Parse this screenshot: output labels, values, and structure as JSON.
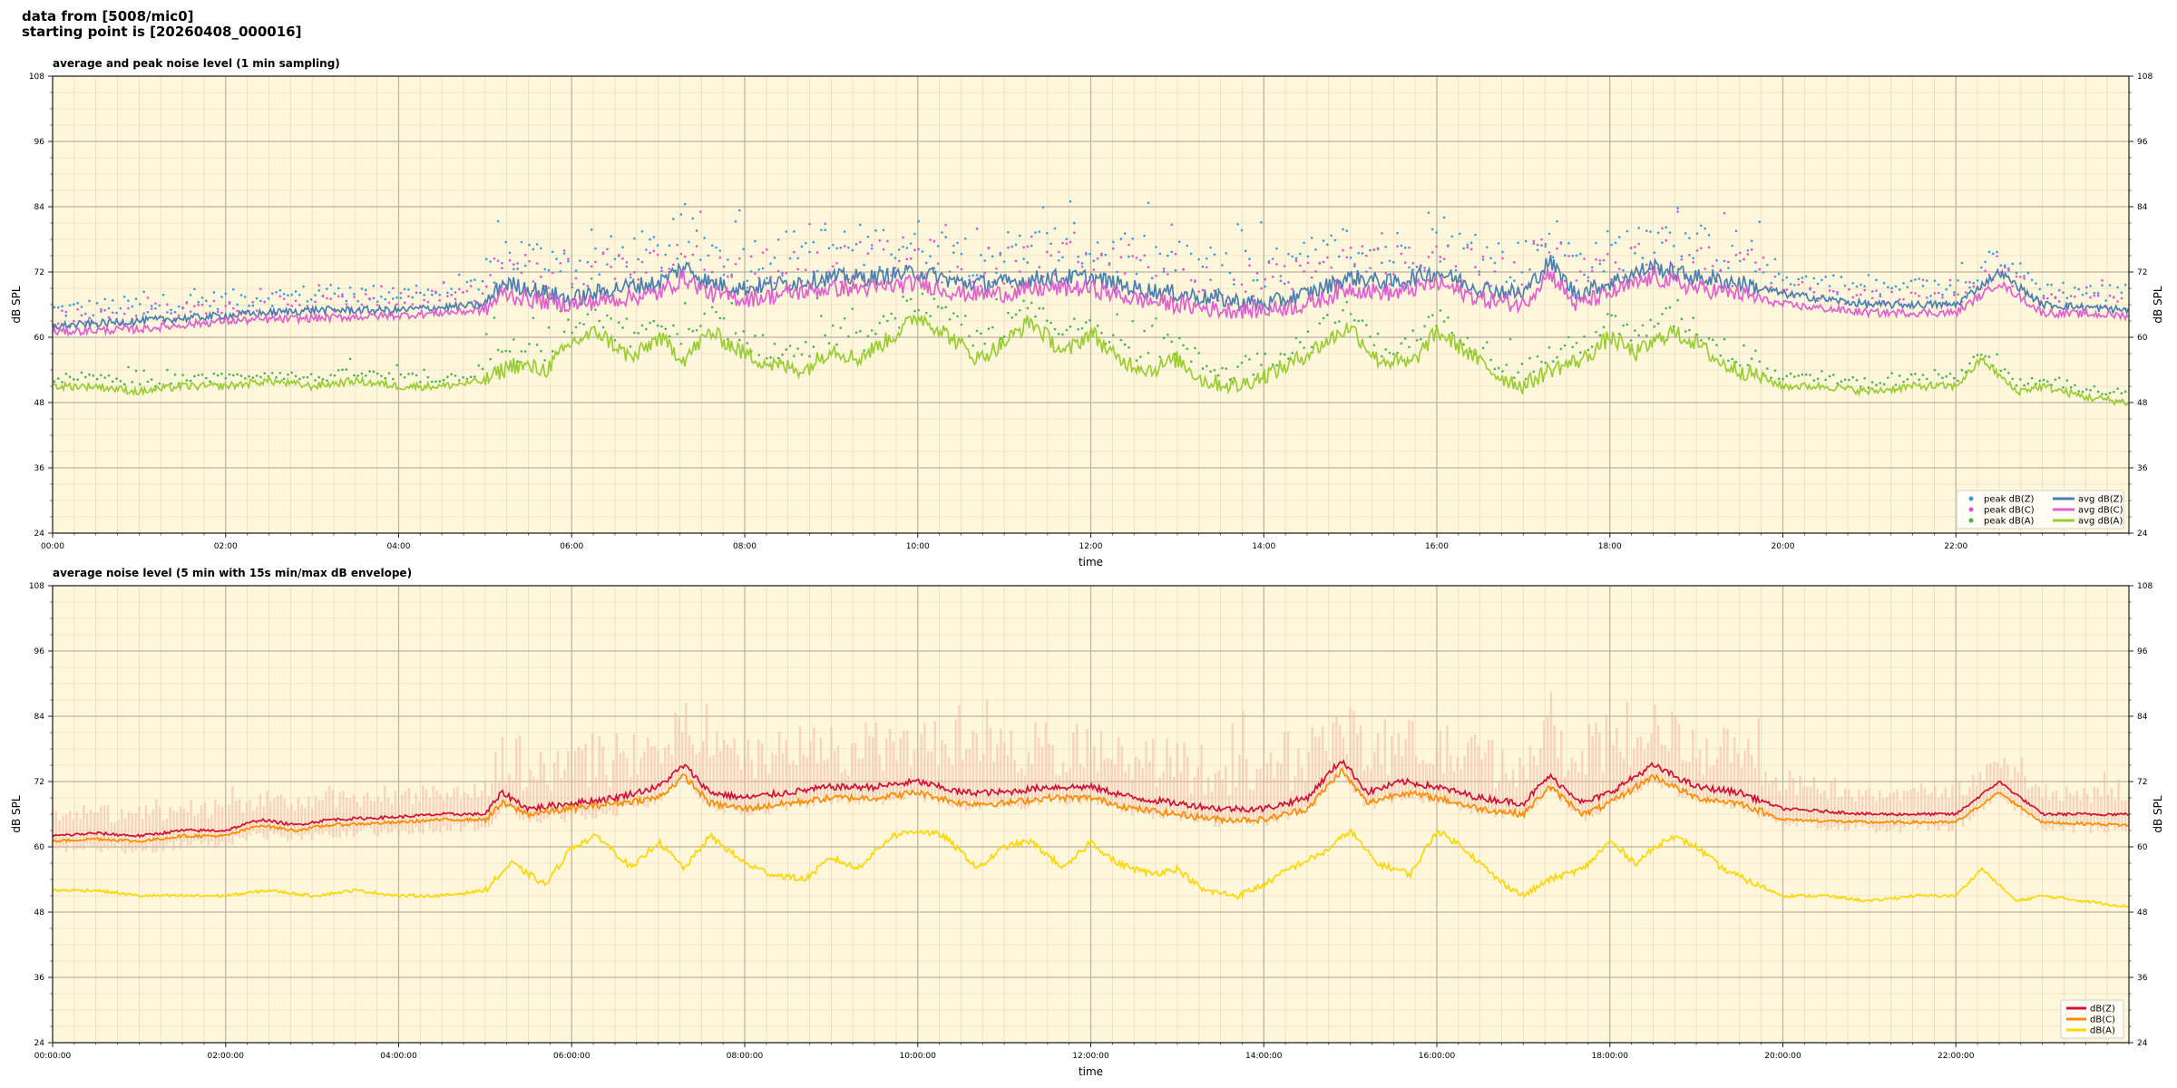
{
  "header": {
    "line1": "data from [5008/mic0]",
    "line2": "starting point is [20260408_000016]"
  },
  "chart_data": [
    {
      "type": "line",
      "title": "average and peak noise level (1 min sampling)",
      "xlabel": "time",
      "ylabel": "dB SPL",
      "ylim": [
        24,
        108
      ],
      "yticks": [
        24,
        36,
        48,
        60,
        72,
        84,
        96,
        108
      ],
      "xlim_hours": [
        0,
        24
      ],
      "x_tick_labels": [
        "00:00",
        "02:00",
        "04:00",
        "06:00",
        "08:00",
        "10:00",
        "12:00",
        "14:00",
        "16:00",
        "18:00",
        "20:00",
        "22:00"
      ],
      "grid": true,
      "legend_position": "bottom-right",
      "legend": [
        {
          "label": "peak dB(Z)",
          "kind": "dot",
          "color": "#3b9bd9"
        },
        {
          "label": "peak dB(C)",
          "kind": "dot",
          "color": "#e84fd2"
        },
        {
          "label": "peak dB(A)",
          "kind": "dot",
          "color": "#4caf50"
        },
        {
          "label": "avg dB(Z)",
          "kind": "line",
          "color": "#4a7fb0"
        },
        {
          "label": "avg dB(C)",
          "kind": "line",
          "color": "#e060d0"
        },
        {
          "label": "avg dB(A)",
          "kind": "line",
          "color": "#9acd32"
        }
      ],
      "series": [
        {
          "name": "avg dB(Z)",
          "color": "#4a7fb0",
          "x": [
            0,
            1,
            2,
            3,
            4,
            5,
            5.2,
            5.5,
            6,
            6.5,
            7,
            7.3,
            7.6,
            8,
            8.5,
            9,
            9.5,
            10,
            10.5,
            11,
            11.5,
            12,
            12.5,
            13,
            13.5,
            14,
            14.5,
            15,
            15.5,
            16,
            16.5,
            17,
            17.3,
            17.6,
            18,
            18.5,
            19,
            19.5,
            20,
            21,
            22,
            22.5,
            23,
            24
          ],
          "y": [
            62,
            63,
            64,
            65,
            65,
            66,
            70,
            69,
            67,
            69,
            70,
            73,
            70,
            69,
            70,
            71,
            71,
            72,
            70,
            70,
            71,
            71,
            69,
            68,
            67,
            66,
            68,
            71,
            70,
            72,
            69,
            68,
            74,
            68,
            70,
            73,
            71,
            70,
            68,
            66,
            66,
            72,
            66,
            65
          ]
        },
        {
          "name": "avg dB(C)",
          "color": "#e060d0",
          "x": [
            0,
            1,
            2,
            3,
            4,
            5,
            5.2,
            5.5,
            6,
            6.5,
            7,
            7.3,
            7.6,
            8,
            8.5,
            9,
            9.5,
            10,
            10.5,
            11,
            11.5,
            12,
            12.5,
            13,
            13.5,
            14,
            14.5,
            15,
            15.5,
            16,
            16.5,
            17,
            17.3,
            17.6,
            18,
            18.5,
            19,
            19.5,
            20,
            21,
            22,
            22.5,
            23,
            24
          ],
          "y": [
            61,
            61.5,
            63,
            63.5,
            64,
            65,
            68,
            67,
            66,
            67,
            68,
            71,
            68,
            67,
            68,
            69,
            69,
            70,
            68,
            68,
            69,
            69,
            67,
            66,
            65,
            65,
            66,
            69,
            68,
            70,
            67,
            66,
            72,
            66,
            68,
            71,
            69,
            68,
            66,
            64.5,
            64.5,
            70,
            64.5,
            64
          ]
        },
        {
          "name": "avg dB(A)",
          "color": "#9acd32",
          "x": [
            0,
            0.5,
            1,
            1.5,
            2,
            2.5,
            3,
            3.5,
            4,
            4.5,
            5,
            5.3,
            5.7,
            6,
            6.3,
            6.7,
            7,
            7.3,
            7.6,
            8,
            8.3,
            8.7,
            9,
            9.3,
            9.7,
            10,
            10.3,
            10.7,
            11,
            11.3,
            11.7,
            12,
            12.3,
            12.7,
            13,
            13.3,
            13.7,
            14,
            14.3,
            14.7,
            15,
            15.3,
            15.7,
            16,
            16.3,
            16.7,
            17,
            17.3,
            17.7,
            18,
            18.3,
            18.7,
            19,
            19.3,
            19.7,
            20,
            20.5,
            21,
            21.5,
            22,
            22.3,
            22.7,
            23,
            23.5,
            24
          ],
          "y": [
            51,
            51,
            50,
            51,
            51,
            52,
            51,
            52,
            51,
            51,
            52,
            55,
            54,
            59,
            61,
            56,
            60,
            56,
            61,
            57,
            55,
            54,
            58,
            56,
            60,
            64,
            61,
            56,
            59,
            63,
            57,
            61,
            56,
            54,
            56,
            52,
            51,
            53,
            55,
            59,
            62,
            56,
            55,
            61,
            58,
            53,
            51,
            54,
            56,
            60,
            57,
            61,
            59,
            55,
            53,
            51,
            51,
            50,
            51,
            51,
            56,
            50,
            51,
            49,
            48
          ]
        }
      ],
      "scatter_series": [
        {
          "name": "peak dB(Z)",
          "color": "#3b9bd9",
          "offset_db": 4
        },
        {
          "name": "peak dB(C)",
          "color": "#e84fd2",
          "offset_db": 3.5
        },
        {
          "name": "peak dB(A)",
          "color": "#4caf50",
          "offset_db": 2
        }
      ]
    },
    {
      "type": "area",
      "title": "average noise level (5 min with 15s min/max dB envelope)",
      "xlabel": "time",
      "ylabel": "dB SPL",
      "ylim": [
        24,
        108
      ],
      "yticks": [
        24,
        36,
        48,
        60,
        72,
        84,
        96,
        108
      ],
      "xlim_hours": [
        0,
        24
      ],
      "x_tick_labels": [
        "00:00:00",
        "02:00:00",
        "04:00:00",
        "06:00:00",
        "08:00:00",
        "10:00:00",
        "12:00:00",
        "14:00:00",
        "16:00:00",
        "18:00:00",
        "20:00:00",
        "22:00:00"
      ],
      "grid": true,
      "legend_position": "bottom-right",
      "envelope_color": "#f4b8a4",
      "legend": [
        {
          "label": "dB(Z)",
          "kind": "line",
          "color": "#d0103a"
        },
        {
          "label": "dB(C)",
          "kind": "line",
          "color": "#ff8c00"
        },
        {
          "label": "dB(A)",
          "kind": "line",
          "color": "#ffd700"
        }
      ],
      "series": [
        {
          "name": "dB(Z)",
          "color": "#d0103a",
          "x": [
            0,
            0.5,
            1,
            1.5,
            2,
            2.4,
            2.8,
            3.2,
            4,
            4.5,
            5,
            5.2,
            5.5,
            6,
            6.5,
            7,
            7.3,
            7.6,
            8,
            8.5,
            9,
            9.5,
            10,
            10.5,
            11,
            11.5,
            12,
            12.5,
            13,
            13.5,
            14,
            14.5,
            14.9,
            15.2,
            15.6,
            16,
            16.5,
            17,
            17.3,
            17.7,
            18,
            18.5,
            19,
            19.5,
            20,
            21,
            22,
            22.5,
            23,
            24
          ],
          "y": [
            62,
            62.5,
            62,
            63,
            63,
            65,
            64,
            65,
            65.5,
            66,
            66,
            70,
            67,
            68,
            69,
            71,
            75,
            70,
            69,
            70,
            71,
            71,
            72,
            70,
            70,
            71,
            71,
            69,
            68,
            67,
            67,
            69,
            76,
            70,
            72,
            71,
            69,
            68,
            73,
            68,
            70,
            75,
            71,
            70,
            67,
            66,
            66,
            72,
            66,
            66
          ]
        },
        {
          "name": "dB(C)",
          "color": "#ff8c00",
          "x": [
            0,
            0.5,
            1,
            1.5,
            2,
            2.4,
            2.8,
            3.2,
            4,
            4.5,
            5,
            5.2,
            5.5,
            6,
            6.5,
            7,
            7.3,
            7.6,
            8,
            8.5,
            9,
            9.5,
            10,
            10.5,
            11,
            11.5,
            12,
            12.5,
            13,
            13.5,
            14,
            14.5,
            14.9,
            15.2,
            15.6,
            16,
            16.5,
            17,
            17.3,
            17.7,
            18,
            18.5,
            19,
            19.5,
            20,
            21,
            22,
            22.5,
            23,
            24
          ],
          "y": [
            61,
            61.5,
            61,
            62,
            62,
            64,
            63,
            64,
            64.5,
            65,
            65,
            68,
            66,
            67,
            68,
            69,
            73,
            68,
            67,
            68,
            69,
            69,
            70,
            68,
            68,
            69,
            69,
            67,
            66,
            65,
            65,
            67,
            74,
            68,
            70,
            69,
            67,
            66,
            71,
            66,
            68,
            73,
            69,
            68,
            65,
            64.5,
            64.5,
            70,
            64.5,
            64
          ]
        },
        {
          "name": "dB(A)",
          "color": "#ffd700",
          "x": [
            0,
            0.5,
            1,
            1.5,
            2,
            2.5,
            3,
            3.5,
            4,
            4.5,
            5,
            5.3,
            5.7,
            6,
            6.3,
            6.7,
            7,
            7.3,
            7.6,
            8,
            8.3,
            8.7,
            9,
            9.3,
            9.7,
            10,
            10.3,
            10.7,
            11,
            11.3,
            11.7,
            12,
            12.3,
            12.7,
            13,
            13.3,
            13.7,
            14,
            14.3,
            14.7,
            15,
            15.3,
            15.7,
            16,
            16.3,
            16.7,
            17,
            17.3,
            17.7,
            18,
            18.3,
            18.7,
            19,
            19.3,
            19.7,
            20,
            20.5,
            21,
            21.5,
            22,
            22.3,
            22.7,
            23,
            23.5,
            24
          ],
          "y": [
            52,
            52,
            51,
            51,
            51,
            52,
            51,
            52,
            51,
            51,
            52,
            57,
            53,
            60,
            62,
            56,
            61,
            56,
            62,
            57,
            55,
            54,
            58,
            56,
            62,
            63,
            62,
            56,
            60,
            61,
            56,
            61,
            57,
            55,
            56,
            52,
            51,
            53,
            56,
            59,
            63,
            57,
            55,
            63,
            60,
            54,
            51,
            54,
            56,
            61,
            57,
            62,
            60,
            56,
            53,
            51,
            51,
            50,
            51,
            51,
            56,
            50,
            51,
            50,
            49
          ]
        }
      ]
    }
  ]
}
